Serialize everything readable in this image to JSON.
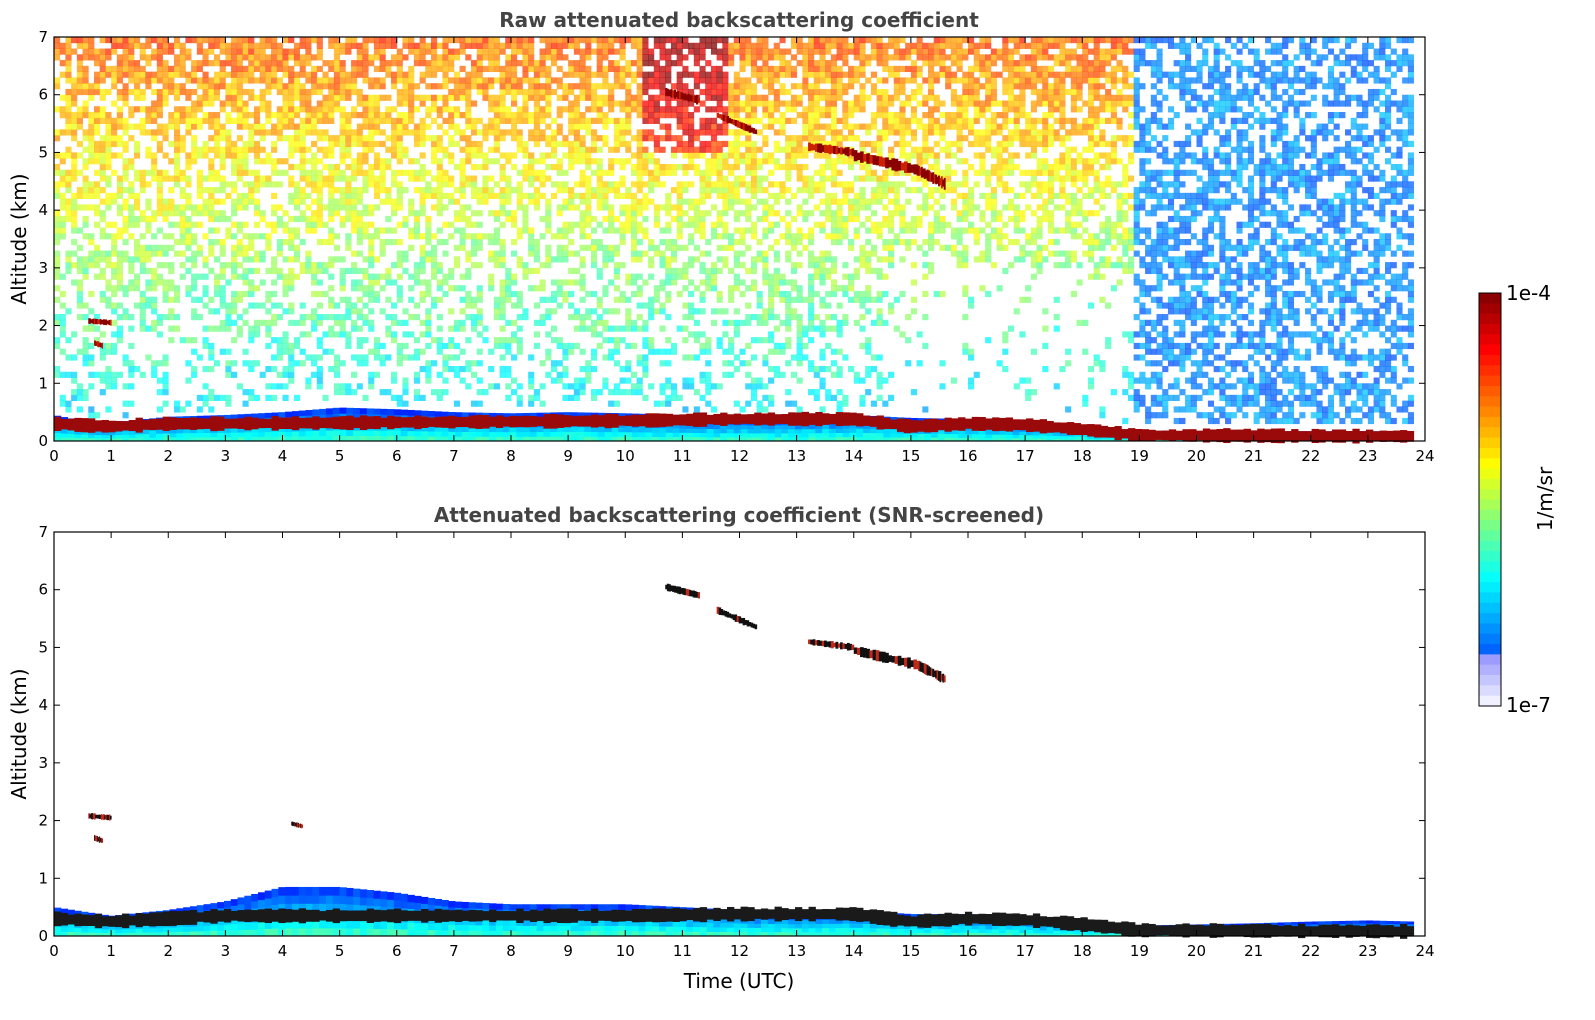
{
  "chart_data": [
    {
      "type": "heatmap",
      "title": "Raw attenuated backscattering coefficient",
      "xlabel": "",
      "ylabel": "Altitude (km)",
      "xlim": [
        0,
        24
      ],
      "ylim": [
        0,
        7
      ],
      "x_ticks": [
        "0",
        "1",
        "2",
        "3",
        "4",
        "5",
        "6",
        "7",
        "8",
        "9",
        "10",
        "11",
        "12",
        "13",
        "14",
        "15",
        "16",
        "17",
        "18",
        "19",
        "20",
        "21",
        "22",
        "23",
        "24"
      ],
      "y_ticks": [
        "0",
        "1",
        "2",
        "3",
        "4",
        "5",
        "6",
        "7"
      ],
      "screened": false,
      "data_end_time": 23.8,
      "noise_change_time": 18.85,
      "boundary_layer": [
        [
          0,
          0.45
        ],
        [
          0.5,
          0.35
        ],
        [
          1,
          0.32
        ],
        [
          2,
          0.42
        ],
        [
          3,
          0.45
        ],
        [
          4,
          0.5
        ],
        [
          5,
          0.58
        ],
        [
          6,
          0.55
        ],
        [
          7,
          0.5
        ],
        [
          8,
          0.48
        ],
        [
          9,
          0.5
        ],
        [
          10,
          0.48
        ],
        [
          11,
          0.45
        ],
        [
          12,
          0.42
        ],
        [
          13,
          0.42
        ],
        [
          14,
          0.45
        ],
        [
          15,
          0.4
        ],
        [
          16,
          0.38
        ],
        [
          17,
          0.33
        ],
        [
          18,
          0.25
        ],
        [
          19,
          0.18
        ],
        [
          20,
          0.17
        ],
        [
          21,
          0.17
        ],
        [
          22,
          0.17
        ],
        [
          23,
          0.17
        ],
        [
          23.8,
          0.17
        ]
      ],
      "aerosol_layer": [
        [
          0,
          0.3
        ],
        [
          1,
          0.25
        ],
        [
          2,
          0.3
        ],
        [
          3,
          0.3
        ],
        [
          10,
          0.35
        ],
        [
          12,
          0.38
        ],
        [
          14,
          0.38
        ],
        [
          15,
          0.25
        ],
        [
          16,
          0.3
        ],
        [
          17,
          0.28
        ],
        [
          18,
          0.2
        ],
        [
          19,
          0.1
        ],
        [
          23.8,
          0.08
        ]
      ],
      "cloud_segments": [
        {
          "t_start": 10.7,
          "t_end": 11.3,
          "alt_start": 6.05,
          "alt_end": 5.9,
          "thickness": 0.15
        },
        {
          "t_start": 11.6,
          "t_end": 12.3,
          "alt_start": 5.65,
          "alt_end": 5.35,
          "thickness": 0.12
        },
        {
          "t_start": 13.2,
          "t_end": 14.0,
          "alt_start": 5.1,
          "alt_end": 5.0,
          "thickness": 0.15
        },
        {
          "t_start": 14.0,
          "t_end": 15.1,
          "alt_start": 4.95,
          "alt_end": 4.7,
          "thickness": 0.2
        },
        {
          "t_start": 15.1,
          "t_end": 15.6,
          "alt_start": 4.7,
          "alt_end": 4.45,
          "thickness": 0.2
        },
        {
          "t_start": 0.6,
          "t_end": 1.0,
          "alt_start": 2.08,
          "alt_end": 2.05,
          "thickness": 0.1
        },
        {
          "t_start": 0.7,
          "t_end": 0.85,
          "alt_start": 1.7,
          "alt_end": 1.65,
          "thickness": 0.1
        }
      ]
    },
    {
      "type": "heatmap",
      "title": "Attenuated backscattering coefficient (SNR-screened)",
      "xlabel": "Time (UTC)",
      "ylabel": "Altitude (km)",
      "xlim": [
        0,
        24
      ],
      "ylim": [
        0,
        7
      ],
      "x_ticks": [
        "0",
        "1",
        "2",
        "3",
        "4",
        "5",
        "6",
        "7",
        "8",
        "9",
        "10",
        "11",
        "12",
        "13",
        "14",
        "15",
        "16",
        "17",
        "18",
        "19",
        "20",
        "21",
        "22",
        "23",
        "24"
      ],
      "y_ticks": [
        "0",
        "1",
        "2",
        "3",
        "4",
        "5",
        "6",
        "7"
      ],
      "screened": true,
      "data_end_time": 23.8,
      "boundary_layer": [
        [
          0,
          0.5
        ],
        [
          1,
          0.35
        ],
        [
          2,
          0.45
        ],
        [
          3,
          0.6
        ],
        [
          4,
          0.85
        ],
        [
          5,
          0.85
        ],
        [
          6,
          0.75
        ],
        [
          7,
          0.6
        ],
        [
          8,
          0.55
        ],
        [
          9,
          0.55
        ],
        [
          10,
          0.55
        ],
        [
          11,
          0.5
        ],
        [
          12,
          0.45
        ],
        [
          13,
          0.42
        ],
        [
          14,
          0.45
        ],
        [
          15,
          0.38
        ],
        [
          16,
          0.38
        ],
        [
          17,
          0.35
        ],
        [
          18,
          0.25
        ],
        [
          19,
          0.18
        ],
        [
          20,
          0.2
        ],
        [
          21,
          0.22
        ],
        [
          22,
          0.25
        ],
        [
          23,
          0.27
        ],
        [
          23.8,
          0.25
        ]
      ],
      "aerosol_layer": [
        [
          0,
          0.3
        ],
        [
          1,
          0.25
        ],
        [
          2,
          0.3
        ],
        [
          3,
          0.35
        ],
        [
          10,
          0.35
        ],
        [
          12,
          0.38
        ],
        [
          14,
          0.38
        ],
        [
          15,
          0.25
        ],
        [
          16,
          0.3
        ],
        [
          17,
          0.28
        ],
        [
          18,
          0.2
        ],
        [
          19,
          0.1
        ],
        [
          23.8,
          0.08
        ]
      ],
      "cloud_segments": [
        {
          "t_start": 10.7,
          "t_end": 11.3,
          "alt_start": 6.05,
          "alt_end": 5.9,
          "thickness": 0.12
        },
        {
          "t_start": 11.6,
          "t_end": 12.3,
          "alt_start": 5.65,
          "alt_end": 5.35,
          "thickness": 0.12
        },
        {
          "t_start": 13.2,
          "t_end": 14.0,
          "alt_start": 5.1,
          "alt_end": 5.0,
          "thickness": 0.12
        },
        {
          "t_start": 14.0,
          "t_end": 15.1,
          "alt_start": 4.95,
          "alt_end": 4.7,
          "thickness": 0.18
        },
        {
          "t_start": 15.1,
          "t_end": 15.6,
          "alt_start": 4.7,
          "alt_end": 4.45,
          "thickness": 0.18
        },
        {
          "t_start": 0.6,
          "t_end": 1.0,
          "alt_start": 2.08,
          "alt_end": 2.05,
          "thickness": 0.1
        },
        {
          "t_start": 0.7,
          "t_end": 0.85,
          "alt_start": 1.7,
          "alt_end": 1.65,
          "thickness": 0.1
        },
        {
          "t_start": 4.15,
          "t_end": 4.35,
          "alt_start": 1.95,
          "alt_end": 1.9,
          "thickness": 0.08
        }
      ]
    }
  ],
  "colorbar": {
    "label": "1/m/sr",
    "max_label": "1e-4",
    "min_label": "1e-7",
    "colormap": "jet",
    "scale": "log"
  }
}
